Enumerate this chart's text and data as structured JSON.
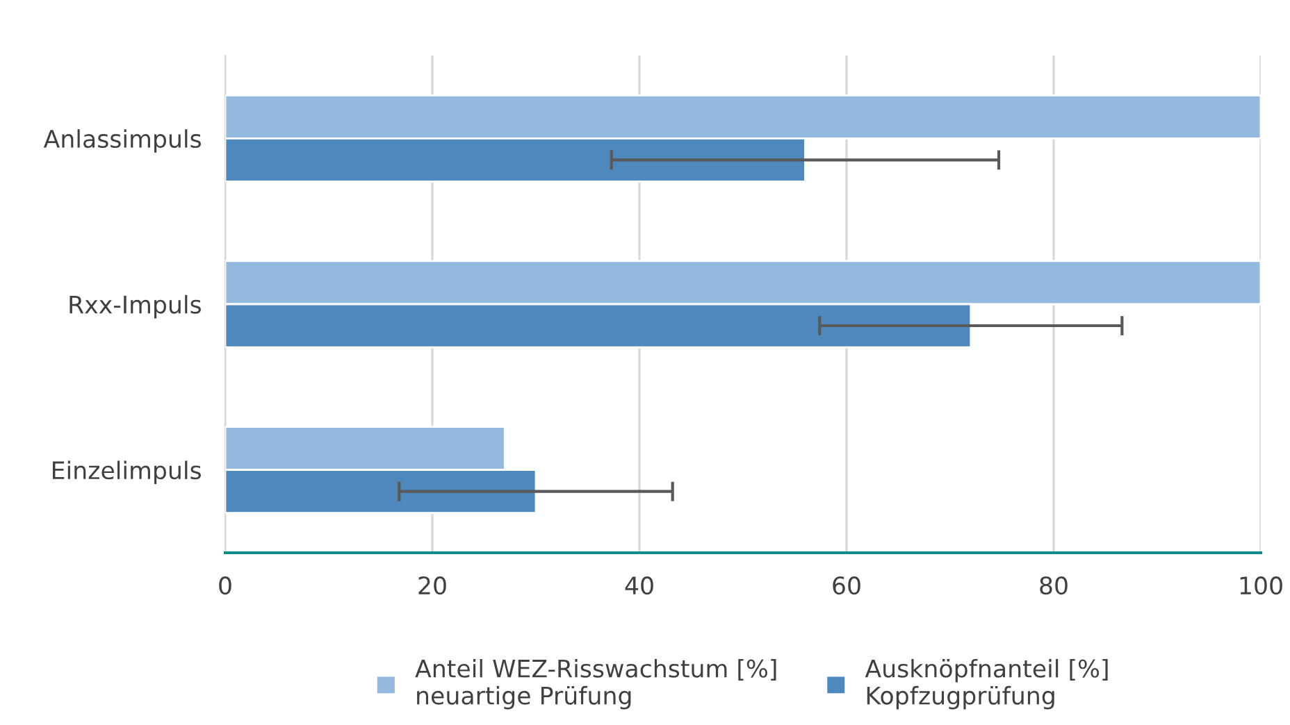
{
  "chart_data": {
    "type": "bar",
    "orientation": "horizontal",
    "categories": [
      "Anlassimpuls",
      "Rxx-Impuls",
      "Einzelimpuls"
    ],
    "series": [
      {
        "name": "Anteil WEZ-Risswachstum [%]\nneuartige Prüfung",
        "color": "#95b8df",
        "values": [
          100,
          100,
          27
        ]
      },
      {
        "name": "Ausknöpfnanteil [%]\nKopfzugprüfung",
        "color": "#4f88bc",
        "values": [
          56,
          72,
          30
        ],
        "errors": [
          18.7,
          14.6,
          13.2
        ]
      }
    ],
    "xlim": [
      0,
      100
    ],
    "xticks": [
      0,
      20,
      40,
      60,
      80,
      100
    ],
    "grid": "x",
    "legend": "bottom"
  }
}
